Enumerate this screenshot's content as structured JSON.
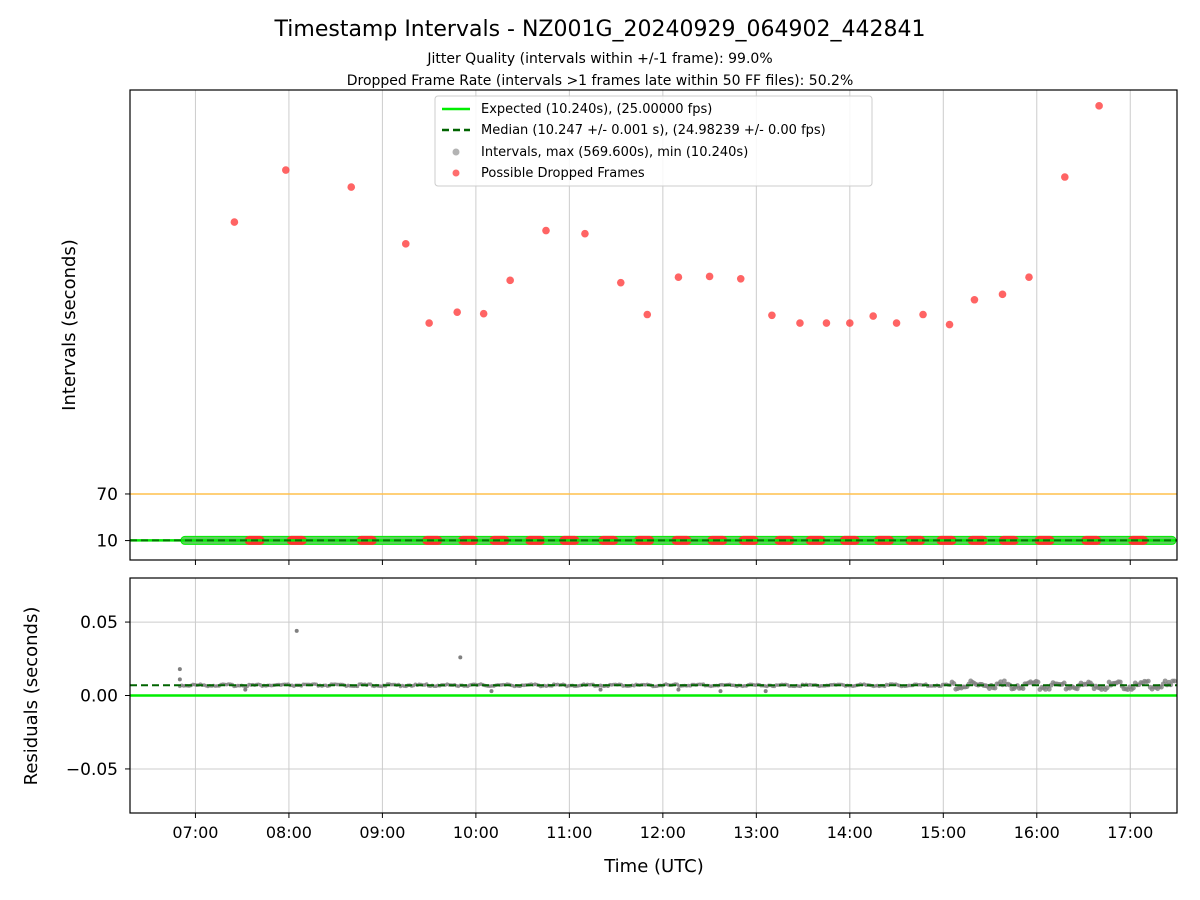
{
  "title": "Timestamp Intervals - NZ001G_20240929_064902_442841",
  "subtitle_1": "Jitter Quality (intervals within +/-1 frame): 99.0%",
  "subtitle_2": "Dropped Frame Rate (intervals >1 frames late within 50 FF files): 50.2%",
  "colors": {
    "expected": "#00ee00",
    "median": "#006400",
    "threshold": "#ffc04d",
    "dropped": "#ff3030",
    "intervals": "#808080",
    "grid": "#cccccc"
  },
  "chart_data": [
    {
      "type": "scatter",
      "ylabel": "Intervals (seconds)",
      "x_ticks": [
        "07:00",
        "08:00",
        "09:00",
        "10:00",
        "11:00",
        "12:00",
        "13:00",
        "14:00",
        "15:00",
        "16:00",
        "17:00"
      ],
      "y_ticks": [
        10,
        70
      ],
      "xlim": [
        "06:18",
        "17:30"
      ],
      "ylim": [
        -15,
        590
      ],
      "grid": "x only",
      "legend_placement": "top-center",
      "legend": [
        {
          "label": "Expected (10.240s), (25.00000 fps)",
          "kind": "line"
        },
        {
          "label": "Median (10.247 +/- 0.001 s), (24.98239 +/- 0.00 fps)",
          "kind": "dashed"
        },
        {
          "label": "Intervals, max (569.600s), min (10.240s)",
          "kind": "marker-gray"
        },
        {
          "label": "Possible Dropped Frames",
          "kind": "marker-red"
        }
      ],
      "expected_interval": 10.24,
      "median_interval": 10.247,
      "threshold_line": 70,
      "dropped_points": {
        "x": [
          "07:25",
          "07:58",
          "08:40",
          "09:15",
          "09:30",
          "09:48",
          "10:05",
          "10:22",
          "10:45",
          "11:10",
          "11:33",
          "11:50",
          "12:10",
          "12:30",
          "12:50",
          "13:10",
          "13:28",
          "13:45",
          "14:00",
          "14:15",
          "14:30",
          "14:47",
          "15:04",
          "15:20",
          "15:38",
          "15:55",
          "16:18",
          "16:40"
        ],
        "y": [
          420,
          487,
          465,
          392,
          290,
          304,
          302,
          345,
          409,
          405,
          342,
          301,
          349,
          350,
          347,
          300,
          290,
          290,
          290,
          299,
          290,
          301,
          288,
          320,
          327,
          349,
          478,
          569.6
        ]
      },
      "baseline_segments": [
        {
          "start": "06:50",
          "end": "17:30",
          "value": 10.24,
          "note": "dense regular intervals"
        }
      ],
      "dropped_baseline_clusters": [
        "07:38",
        "08:05",
        "08:50",
        "09:32",
        "09:55",
        "10:15",
        "10:38",
        "11:00",
        "11:25",
        "11:48",
        "12:12",
        "12:35",
        "12:55",
        "13:18",
        "13:38",
        "14:00",
        "14:22",
        "14:42",
        "15:02",
        "15:22",
        "15:42",
        "16:05",
        "16:35",
        "17:05"
      ]
    },
    {
      "type": "scatter",
      "xlabel": "Time (UTC)",
      "ylabel": "Residuals (seconds)",
      "x_ticks": [
        "07:00",
        "08:00",
        "09:00",
        "10:00",
        "11:00",
        "12:00",
        "13:00",
        "14:00",
        "15:00",
        "16:00",
        "17:00"
      ],
      "y_ticks": [
        "−0.05",
        "0.00",
        "0.05"
      ],
      "y_tick_values": [
        -0.05,
        0.0,
        0.05
      ],
      "xlim": [
        "06:18",
        "17:30"
      ],
      "ylim": [
        -0.08,
        0.08
      ],
      "grid": "both",
      "expected_residual": 0.0,
      "median_residual": 0.007,
      "outliers": {
        "x": [
          "06:50",
          "06:50",
          "08:05",
          "09:50",
          "07:32",
          "10:10",
          "11:20",
          "12:10",
          "12:37",
          "13:06"
        ],
        "y": [
          0.018,
          0.011,
          0.044,
          0.026,
          0.004,
          0.003,
          0.004,
          0.004,
          0.003,
          0.003
        ]
      }
    }
  ]
}
